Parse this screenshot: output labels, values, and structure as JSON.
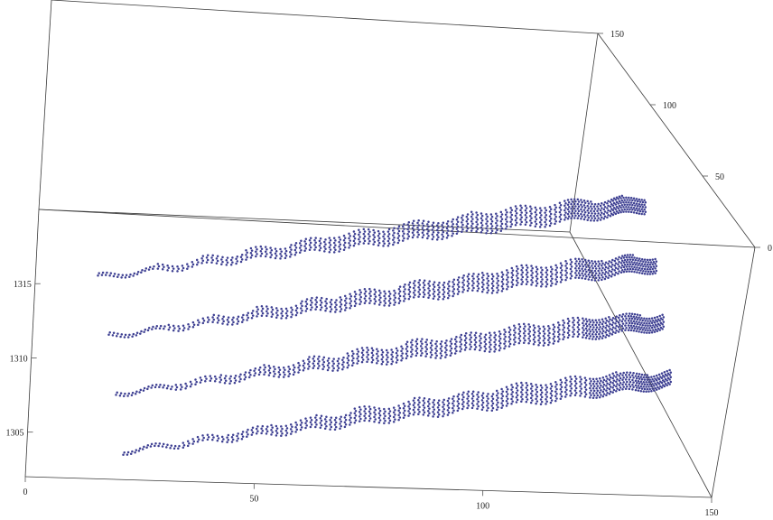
{
  "chart_data": {
    "type": "scatter",
    "projection": "3d",
    "title": "",
    "xlabel": "",
    "ylabel": "",
    "zlabel": "",
    "xlim": [
      0,
      150
    ],
    "ylim": [
      0,
      150
    ],
    "zlim": [
      1302,
      1320
    ],
    "x_ticks": [
      "0",
      "50",
      "100",
      "150"
    ],
    "y_ticks": [
      "0",
      "50",
      "100",
      "150"
    ],
    "z_ticks": [
      "1305",
      "1310",
      "1315"
    ],
    "marker_color": "#3d3f92",
    "series": [
      {
        "z": 1320.5,
        "x": [
          8,
          20,
          35,
          50,
          65,
          80,
          95,
          110,
          120,
          128
        ],
        "y": [
          150,
          150,
          150,
          150,
          150,
          150,
          150,
          150,
          150,
          150
        ],
        "z_spread": [
          0.3,
          0.6,
          1.0,
          1.4,
          1.8,
          2.0,
          2.2,
          2.3,
          2.0,
          1.6
        ]
      },
      {
        "z": 1317.0,
        "x": [
          8,
          20,
          35,
          50,
          65,
          80,
          95,
          110,
          120,
          128
        ],
        "y": [
          100,
          100,
          100,
          100,
          100,
          100,
          100,
          100,
          100,
          100
        ],
        "z_spread": [
          0.3,
          0.6,
          1.0,
          1.4,
          1.8,
          2.0,
          2.2,
          2.3,
          2.0,
          1.6
        ]
      },
      {
        "z": 1313.5,
        "x": [
          8,
          20,
          35,
          50,
          65,
          80,
          95,
          110,
          120,
          128
        ],
        "y": [
          50,
          50,
          50,
          50,
          50,
          50,
          50,
          50,
          50,
          50
        ],
        "z_spread": [
          0.3,
          0.6,
          1.0,
          1.4,
          1.8,
          2.0,
          2.2,
          2.3,
          2.0,
          1.6
        ]
      },
      {
        "z": 1310.0,
        "x": [
          8,
          20,
          35,
          50,
          65,
          80,
          95,
          110,
          120,
          128
        ],
        "y": [
          0,
          0,
          0,
          0,
          0,
          0,
          0,
          0,
          0,
          0
        ],
        "z_spread": [
          0.3,
          0.6,
          1.0,
          1.4,
          1.8,
          2.0,
          2.2,
          2.3,
          2.0,
          1.6
        ]
      }
    ]
  }
}
